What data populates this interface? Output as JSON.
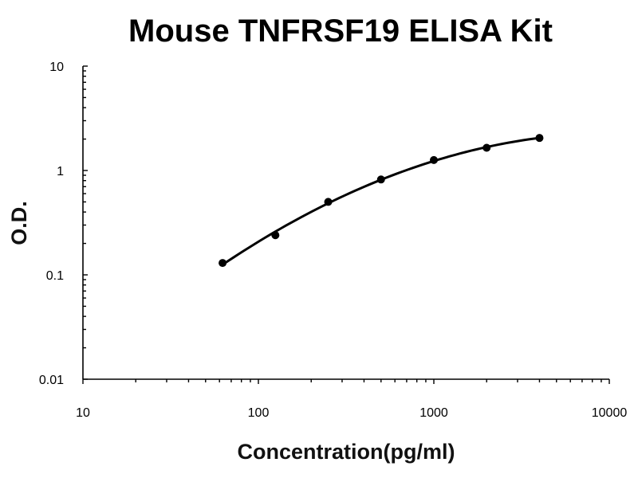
{
  "chart_data": {
    "type": "scatter",
    "title": "Mouse TNFRSF19 ELISA Kit",
    "xlabel": "Concentration(pg/ml)",
    "ylabel": "O.D.",
    "x_scale": "log",
    "y_scale": "log",
    "xlim": [
      10,
      10000
    ],
    "ylim": [
      0.01,
      10
    ],
    "x_ticks": [
      "10",
      "100",
      "1000",
      "10000"
    ],
    "y_ticks": [
      "0.01",
      "0.1",
      "1",
      "10"
    ],
    "grid": false,
    "legend": "none",
    "series": [
      {
        "x": [
          62.5,
          125,
          250,
          500,
          1000,
          2000,
          4000
        ],
        "y": [
          0.13,
          0.24,
          0.5,
          0.82,
          1.26,
          1.65,
          2.05
        ]
      }
    ],
    "fit_curve": true
  },
  "colors": {
    "marker": "#000000",
    "curve": "#000000",
    "background": "#ffffff"
  }
}
